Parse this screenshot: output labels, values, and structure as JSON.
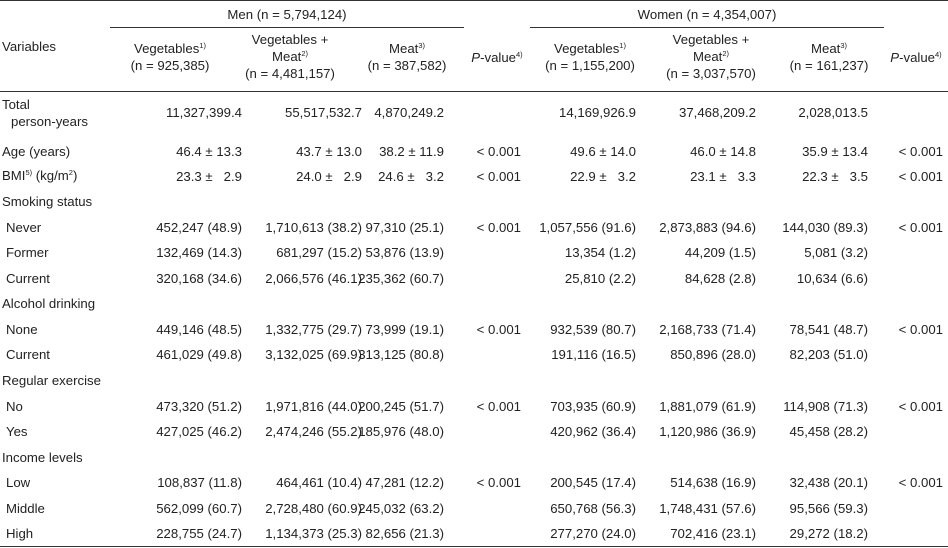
{
  "groups": {
    "men": "Men (n = 5,794,124)",
    "women": "Women (n = 4,354,007)"
  },
  "header": {
    "variables": "Variables",
    "men_veg_l1": "Vegetables",
    "men_veg_sup": "1)",
    "men_veg_l2": "(n = 925,385)",
    "men_vm_l1": "Vegetables +",
    "men_vm_l2": "Meat",
    "men_vm_sup": "2)",
    "men_vm_l3": "(n = 4,481,157)",
    "men_meat_l1": "Meat",
    "men_meat_sup": "3)",
    "men_meat_l2": "(n = 387,582)",
    "pval_p": "P",
    "pval_rest": "-value",
    "pval_sup": "4)",
    "women_veg_l1": "Vegetables",
    "women_veg_sup": "1)",
    "women_veg_l2": "(n = 1,155,200)",
    "women_vm_l1": "Vegetables +",
    "women_vm_l2": "Meat",
    "women_vm_sup": "2)",
    "women_vm_l3": "(n = 3,037,570)",
    "women_meat_l1": "Meat",
    "women_meat_sup": "3)",
    "women_meat_l2": "(n = 161,237)"
  },
  "rows": {
    "total_l1": "Total",
    "total_l2": "person-years",
    "total": [
      "11,327,399.4",
      "55,517,532.7",
      "4,870,249.2",
      "",
      "14,169,926.9",
      "37,468,209.2",
      "2,028,013.5",
      ""
    ],
    "age_label": "Age (years)",
    "age": [
      "46.4 ± 13.3",
      "43.7 ± 13.0",
      "38.2 ± 11.9",
      "< 0.001",
      "49.6 ± 14.0",
      "46.0 ± 14.8",
      "35.9 ± 13.4",
      "< 0.001"
    ],
    "bmi_label_a": "BMI",
    "bmi_sup": "5)",
    "bmi_label_b": " (kg/m",
    "bmi_sup2": "2",
    "bmi_label_c": ")",
    "bmi": [
      "23.3 ±   2.9",
      "24.0 ±   2.9",
      "24.6 ±   3.2",
      "< 0.001",
      "22.9 ±   3.2",
      "23.1 ±   3.3",
      "22.3 ±   3.5",
      "< 0.001"
    ],
    "smoking_label": "Smoking status",
    "never_label": "Never",
    "never": [
      "452,247 (48.9)",
      "1,710,613 (38.2)",
      "97,310 (25.1)",
      "< 0.001",
      "1,057,556 (91.6)",
      "2,873,883 (94.6)",
      "144,030 (89.3)",
      "< 0.001"
    ],
    "former_label": "Former",
    "former": [
      "132,469 (14.3)",
      "681,297 (15.2)",
      "53,876 (13.9)",
      "",
      "13,354 (1.2)",
      "44,209 (1.5)",
      "5,081 (3.2)",
      ""
    ],
    "current_s_label": "Current",
    "current_s": [
      "320,168 (34.6)",
      "2,066,576 (46.1)",
      "235,362 (60.7)",
      "",
      "25,810 (2.2)",
      "84,628 (2.8)",
      "10,634 (6.6)",
      ""
    ],
    "alcohol_label": "Alcohol drinking",
    "none_label": "None",
    "none": [
      "449,146 (48.5)",
      "1,332,775 (29.7)",
      "73,999 (19.1)",
      "< 0.001",
      "932,539 (80.7)",
      "2,168,733 (71.4)",
      "78,541 (48.7)",
      "< 0.001"
    ],
    "current_a_label": "Current",
    "current_a": [
      "461,029 (49.8)",
      "3,132,025 (69.9)",
      "313,125 (80.8)",
      "",
      "191,116 (16.5)",
      "850,896 (28.0)",
      "82,203 (51.0)",
      ""
    ],
    "exercise_label": "Regular exercise",
    "no_label": "No",
    "no": [
      "473,320 (51.2)",
      "1,971,816 (44.0)",
      "200,245 (51.7)",
      "< 0.001",
      "703,935 (60.9)",
      "1,881,079 (61.9)",
      "114,908 (71.3)",
      "< 0.001"
    ],
    "yes_label": "Yes",
    "yes": [
      "427,025 (46.2)",
      "2,474,246 (55.2)",
      "185,976 (48.0)",
      "",
      "420,962 (36.4)",
      "1,120,986 (36.9)",
      "45,458 (28.2)",
      ""
    ],
    "income_label": "Income levels",
    "low_label": "Low",
    "low": [
      "108,837 (11.8)",
      "464,461 (10.4)",
      "47,281 (12.2)",
      "< 0.001",
      "200,545 (17.4)",
      "514,638 (16.9)",
      "32,438 (20.1)",
      "< 0.001"
    ],
    "middle_label": "Middle",
    "middle": [
      "562,099 (60.7)",
      "2,728,480 (60.9)",
      "245,032 (63.2)",
      "",
      "650,768 (56.3)",
      "1,748,431 (57.6)",
      "95,566 (59.3)",
      ""
    ],
    "high_label": "High",
    "high": [
      "228,755 (24.7)",
      "1,134,373 (25.3)",
      "82,656 (21.3)",
      "",
      "277,270 (24.0)",
      "702,416 (23.1)",
      "29,272 (18.2)",
      ""
    ]
  }
}
